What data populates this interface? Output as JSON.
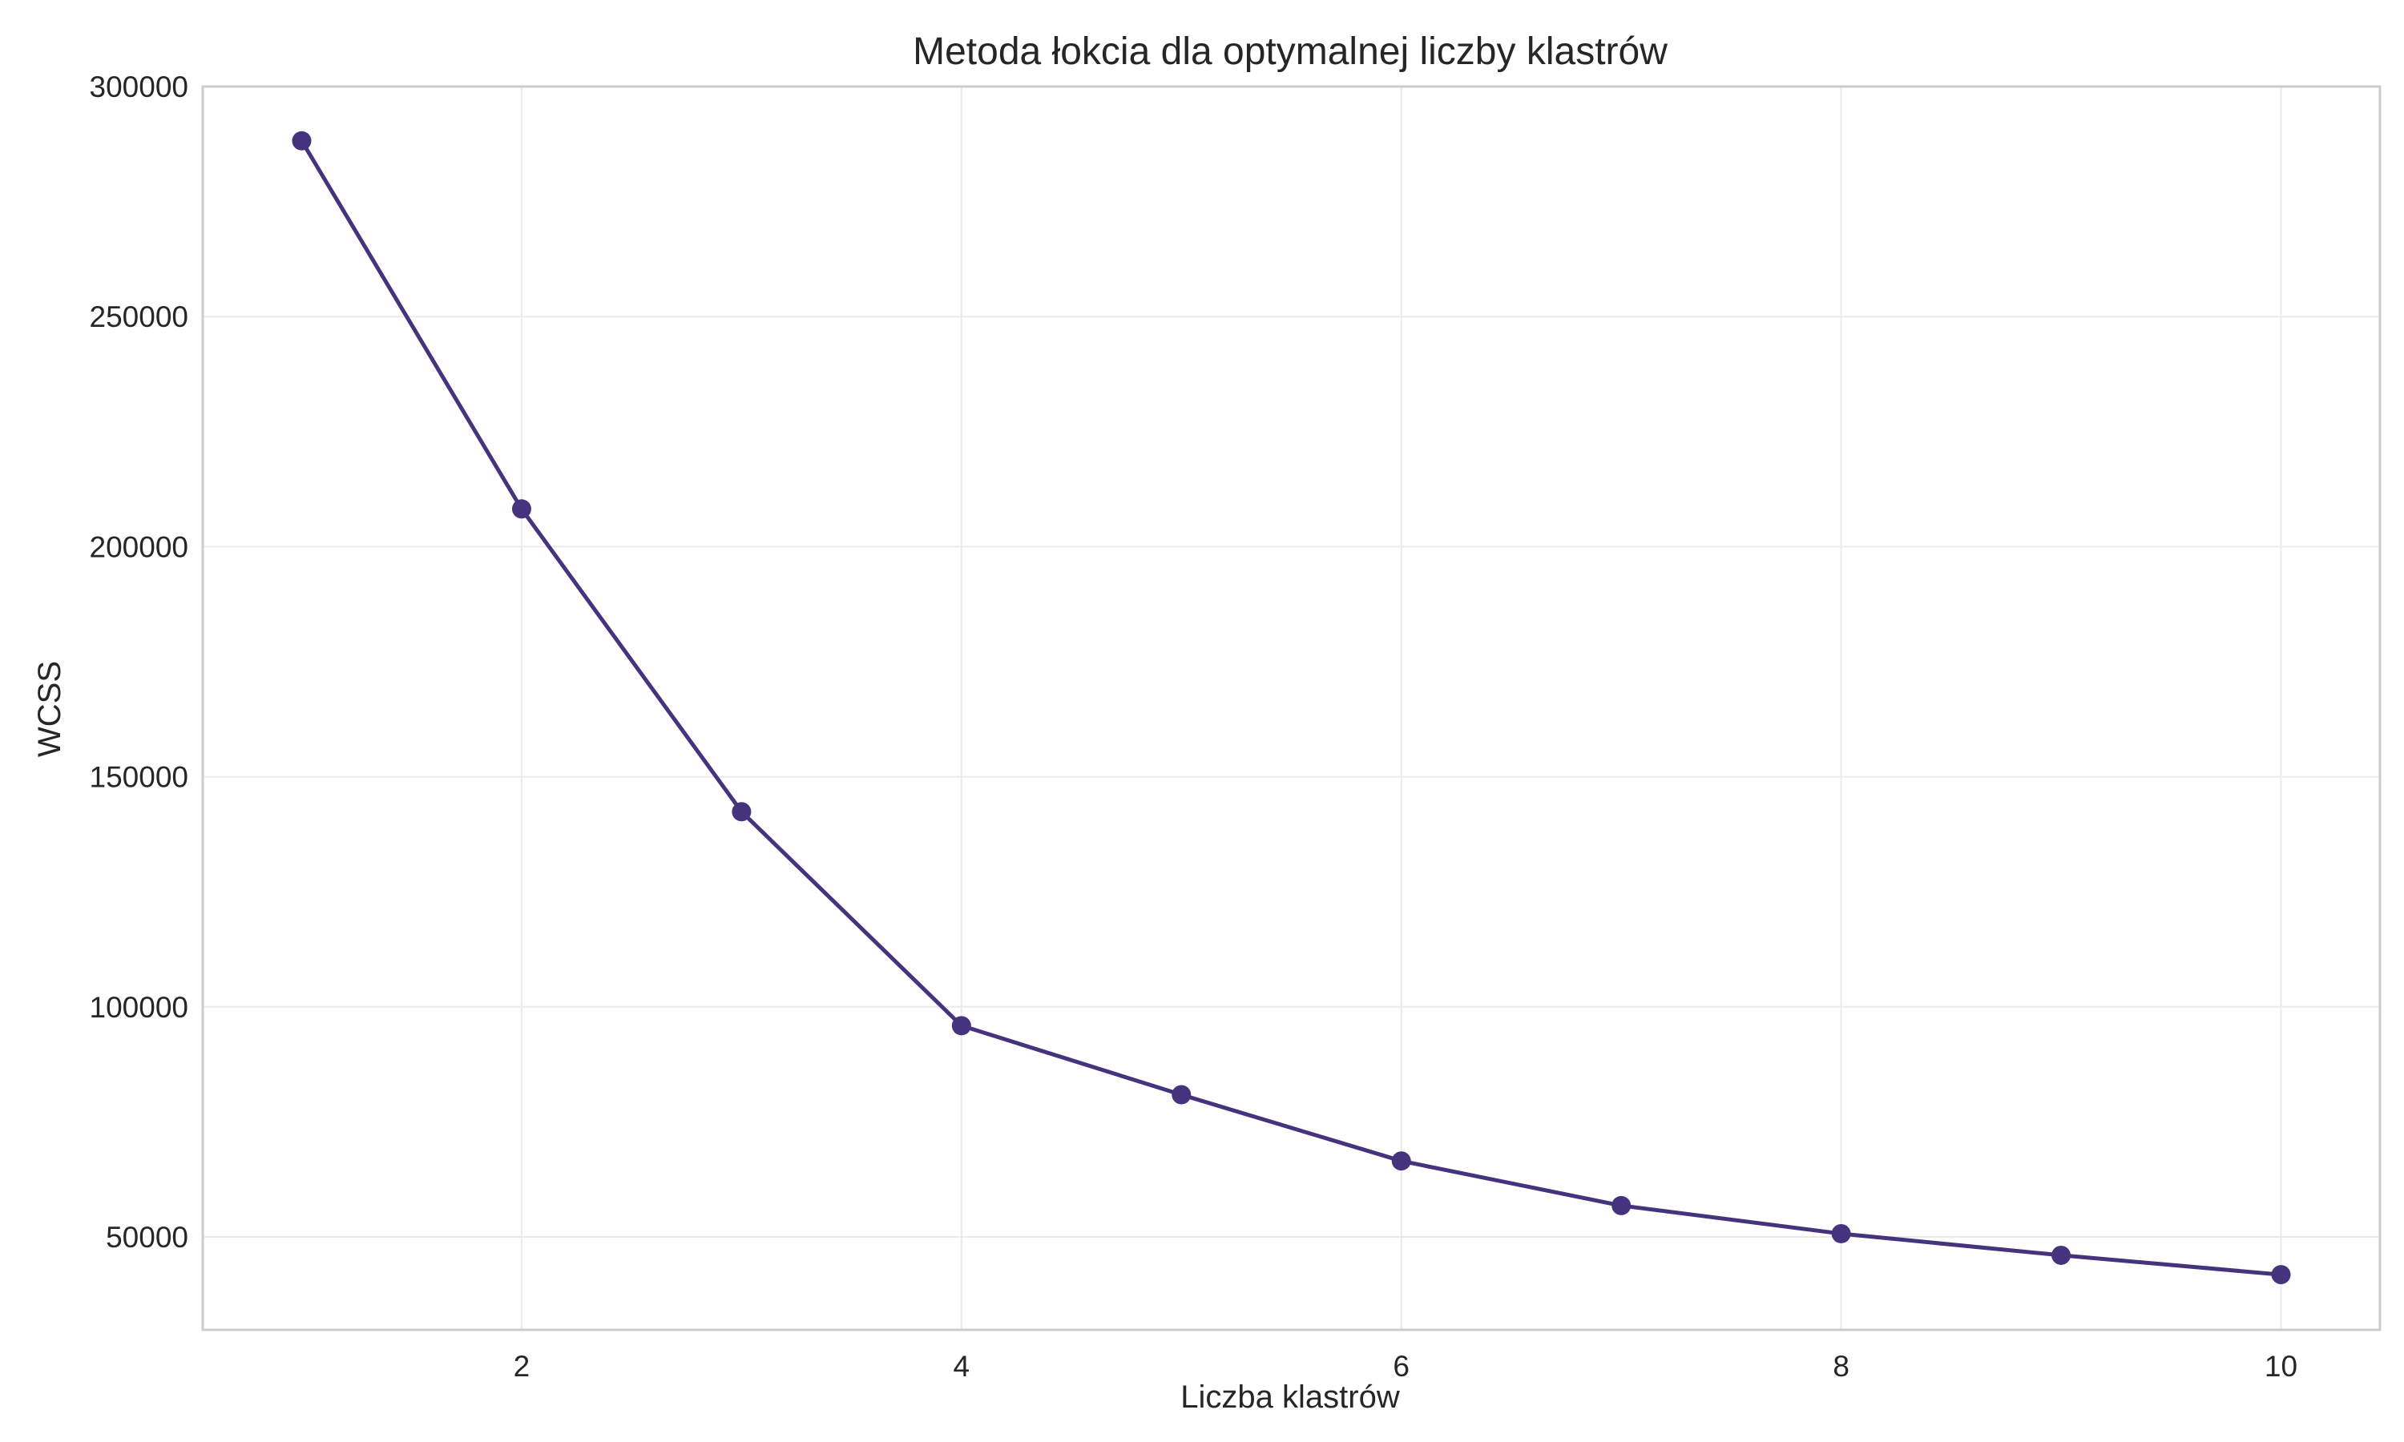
{
  "chart_data": {
    "type": "line",
    "title": "Metoda łokcia dla optymalnej liczby klastrów",
    "xlabel": "Liczba klastrów",
    "ylabel": "WCSS",
    "x": [
      1,
      2,
      3,
      4,
      5,
      6,
      7,
      8,
      9,
      10
    ],
    "series": [
      {
        "values": [
          288200,
          208200,
          142400,
          95900,
          80900,
          66500,
          56800,
          50700,
          46000,
          41800
        ],
        "color": "#45337d",
        "marker": "circle"
      }
    ],
    "xticks": [
      2,
      4,
      6,
      8,
      10
    ],
    "yticks": [
      50000,
      100000,
      150000,
      200000,
      250000,
      300000
    ],
    "xlim": [
      0.55,
      10.45
    ],
    "ylim": [
      29800,
      300000
    ],
    "grid": true,
    "legend": false
  }
}
